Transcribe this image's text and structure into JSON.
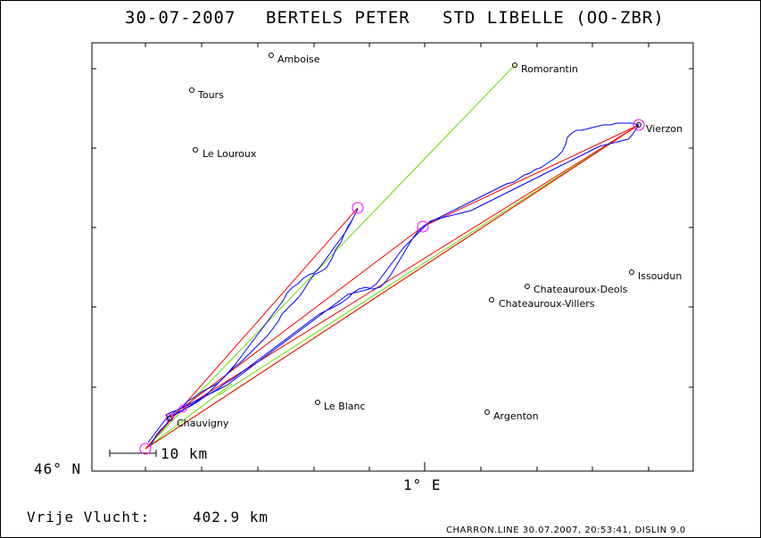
{
  "chart_data": {
    "type": "map-plot",
    "title": {
      "date": "30-07-2007",
      "pilot": "BERTELS PETER",
      "glider": "STD LIBELLE (OO-ZBR)"
    },
    "x_axis_label": "1° E",
    "y_axis_label": "46° N",
    "scale_bar": "10 km",
    "distance_label": "Vrije Vlucht:",
    "distance_value": "402.9 km",
    "program_info": "CHARRON.LINE 30.07.2007, 20:53:41, DISLIN 9.0",
    "places": [
      {
        "name": "Amboise"
      },
      {
        "name": "Romorantin"
      },
      {
        "name": "Tours"
      },
      {
        "name": "Vierzon"
      },
      {
        "name": "Le Louroux"
      },
      {
        "name": "Issoudun"
      },
      {
        "name": "Chateauroux-Deols"
      },
      {
        "name": "Chateauroux-Villers"
      },
      {
        "name": "Chauvigny"
      },
      {
        "name": "Le Blanc"
      },
      {
        "name": "Argenton"
      }
    ],
    "turnpoint_count": 6,
    "colors": {
      "track": "#0000ff",
      "legs": "#ff0000",
      "sector": "#66dd00",
      "turnpoint": "#ff00ff"
    }
  }
}
